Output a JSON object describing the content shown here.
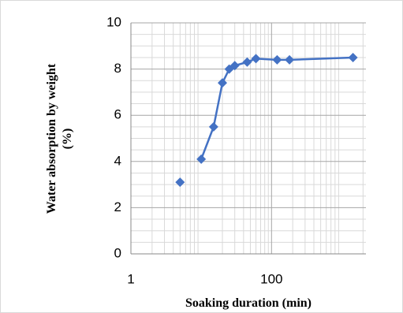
{
  "chart_data": {
    "type": "line",
    "log_x": true,
    "xlabel": "Soaking duration (min)",
    "ylabel": [
      "Water absorption by weight",
      "(%)"
    ],
    "xlim": [
      1,
      2200
    ],
    "xticks": [
      1,
      100
    ],
    "ylim": [
      0,
      10
    ],
    "yticks": [
      0,
      2,
      4,
      6,
      8,
      10
    ],
    "grid": true,
    "series": [
      {
        "color": "#4472c4",
        "line": false,
        "x": [
          5
        ],
        "values": [
          3.1
        ]
      },
      {
        "color": "#4472c4",
        "line": true,
        "x": [
          10,
          15,
          20,
          25,
          30,
          45,
          60,
          120,
          180,
          1440
        ],
        "values": [
          4.1,
          5.5,
          7.4,
          8.0,
          8.15,
          8.3,
          8.45,
          8.4,
          8.4,
          8.5
        ]
      }
    ]
  }
}
